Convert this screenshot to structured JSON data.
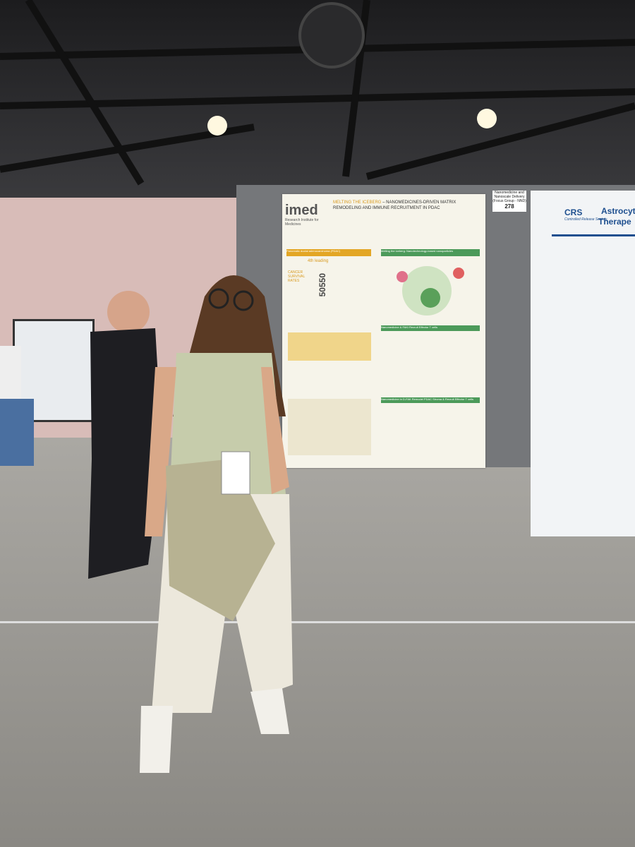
{
  "scene": {
    "main_poster": {
      "logo": "imed",
      "institute": "Research Institute for Medicines",
      "title": "MELTING THE ICEBERG",
      "subtitle": "– NANOMEDICINES-DRIVEN MATRIX REMODELING AND IMMUNE RECRUITMENT IN PDAC",
      "sections": [
        "Pancreatic ductal adenocarcinoma (PDAC)",
        "Melting the iceberg: Nanotechnology-based nanoparticles",
        "Nanomedicine & FAKi Recruit Effector T cells",
        "Nanomedicine in D-FAK Remodel PDAC Stroma & Recruit Effector T cells"
      ],
      "stat_heading": "4th leading",
      "stat_label": "CANCER SURVIVAL RATES",
      "stat_number": "50550"
    },
    "board_sign": {
      "label": "Nanomedicine and Nanoscale Delivery (Focus Group - NND)",
      "number": "278"
    },
    "right_poster": {
      "logo": "CRS",
      "society": "Controlled Release Society",
      "title": "Astrocyte",
      "subtitle": "Therape"
    }
  }
}
